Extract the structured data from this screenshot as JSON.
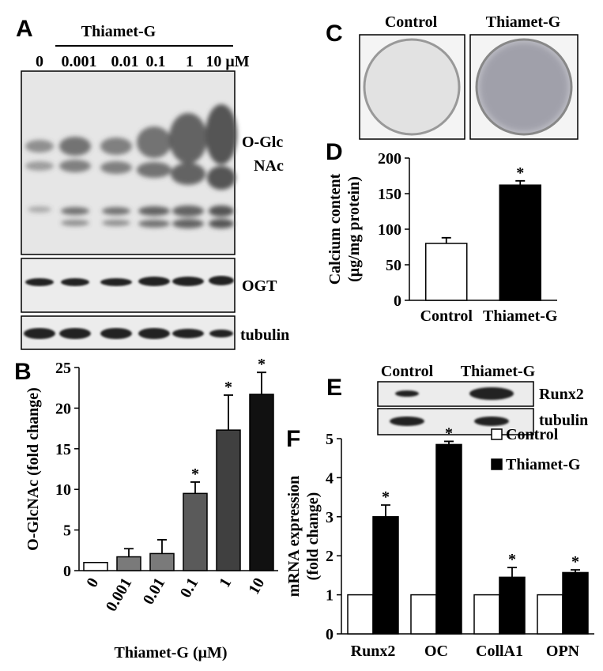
{
  "figure": {
    "A": {
      "letter": "A",
      "treatment": "Thiamet-G",
      "concentrations": [
        "0",
        "0.001",
        "0.01",
        "0.1",
        "1",
        "10 μM"
      ],
      "labels": [
        "O-Glc",
        "NAc",
        "OGT",
        "tubulin"
      ]
    },
    "B": {
      "letter": "B"
    },
    "C": {
      "letter": "C",
      "labels": [
        "Control",
        "Thiamet-G"
      ]
    },
    "D": {
      "letter": "D"
    },
    "E": {
      "letter": "E",
      "columns": [
        "Control",
        "Thiamet-G"
      ],
      "labels": [
        "Runx2",
        "tubulin"
      ]
    },
    "F": {
      "letter": "F"
    }
  },
  "chart_data": [
    {
      "type": "bar",
      "xlabel": "Thiamet-G (μM)",
      "ylabel": [
        "O-GlcNAc (fold change)"
      ],
      "categories": [
        "0",
        "0.001",
        "0.01",
        "0.1",
        "1",
        "10"
      ],
      "values": [
        1,
        1.7,
        2.1,
        9.5,
        17.3,
        21.7
      ],
      "errors": [
        0,
        1.0,
        1.7,
        1.4,
        4.3,
        2.7
      ],
      "colors": [
        "#ffffff",
        "#7a7a7a",
        "#7a7a7a",
        "#5a5a5a",
        "#404040",
        "#111111"
      ],
      "markers": [
        null,
        null,
        null,
        "*",
        "*",
        "*"
      ],
      "ylim": [
        0,
        25
      ],
      "yticks": [
        0,
        5,
        10,
        15,
        20,
        25
      ]
    },
    {
      "type": "bar",
      "ylabel": [
        "Calcium content",
        "(μg/mg protein)"
      ],
      "categories": [
        "Control",
        "Thiamet-G"
      ],
      "values": [
        80,
        162
      ],
      "errors": [
        8,
        6
      ],
      "colors": [
        "#ffffff",
        "#000000"
      ],
      "markers": [
        null,
        "*"
      ],
      "ylim": [
        0,
        200
      ],
      "yticks": [
        0,
        50,
        100,
        150,
        200
      ]
    },
    {
      "type": "bar",
      "ylabel": [
        "mRNA expression",
        "(fold change)"
      ],
      "categories": [
        "Runx2",
        "OC",
        "CollA1",
        "OPN"
      ],
      "series": [
        {
          "name": "Control",
          "color": "#ffffff",
          "values": [
            1,
            1,
            1,
            1
          ]
        },
        {
          "name": "Thiamet-G",
          "color": "#000000",
          "values": [
            3.0,
            4.85,
            1.45,
            1.57
          ],
          "errors": [
            0.3,
            0.08,
            0.25,
            0.07
          ],
          "markers": [
            "*",
            "*",
            "*",
            "*"
          ]
        }
      ],
      "ylim": [
        0,
        5
      ],
      "yticks": [
        0,
        1,
        2,
        3,
        4,
        5
      ]
    }
  ]
}
